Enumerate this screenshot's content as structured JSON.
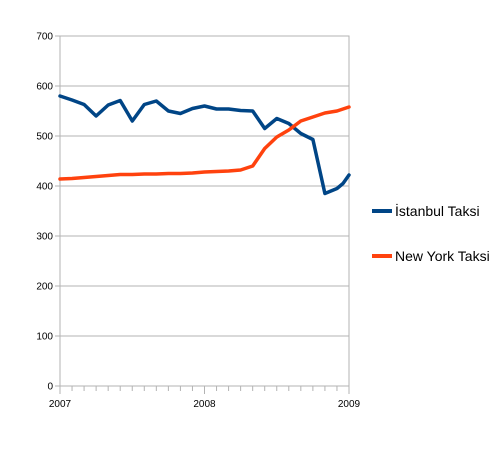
{
  "chart_data": {
    "type": "line",
    "title": "",
    "xlabel": "",
    "ylabel": "",
    "x_tick_labels": [
      "2007",
      "2008",
      "2009"
    ],
    "x_ticks_major": [
      0,
      12,
      24
    ],
    "xlim": [
      0,
      24
    ],
    "ylim": [
      0,
      700
    ],
    "y_ticks": [
      0,
      100,
      200,
      300,
      400,
      500,
      600,
      700
    ],
    "grid": {
      "horizontal": true,
      "vertical": false
    },
    "legend_position": "right",
    "series": [
      {
        "name": "İstanbul Taksi",
        "color": "#004586",
        "x": [
          0,
          1,
          2,
          3,
          4,
          5,
          6,
          7,
          8,
          9,
          10,
          11,
          12,
          13,
          14,
          15,
          16,
          17,
          18,
          19,
          20,
          21,
          22,
          23,
          23.5,
          24
        ],
        "values": [
          580,
          572,
          563,
          540,
          562,
          571,
          530,
          563,
          570,
          550,
          545,
          555,
          560,
          554,
          554,
          551,
          550,
          515,
          535,
          525,
          505,
          493,
          385,
          395,
          405,
          422
        ]
      },
      {
        "name": "New York Taksi",
        "color": "#ff420e",
        "x": [
          0,
          1,
          2,
          3,
          4,
          5,
          6,
          7,
          8,
          9,
          10,
          11,
          12,
          13,
          14,
          15,
          16,
          17,
          18,
          19,
          20,
          21,
          22,
          23,
          24
        ],
        "values": [
          414,
          415,
          417,
          419,
          421,
          423,
          423,
          424,
          424,
          425,
          425,
          426,
          428,
          429,
          430,
          432,
          440,
          475,
          498,
          512,
          530,
          538,
          546,
          550,
          558
        ]
      }
    ]
  }
}
